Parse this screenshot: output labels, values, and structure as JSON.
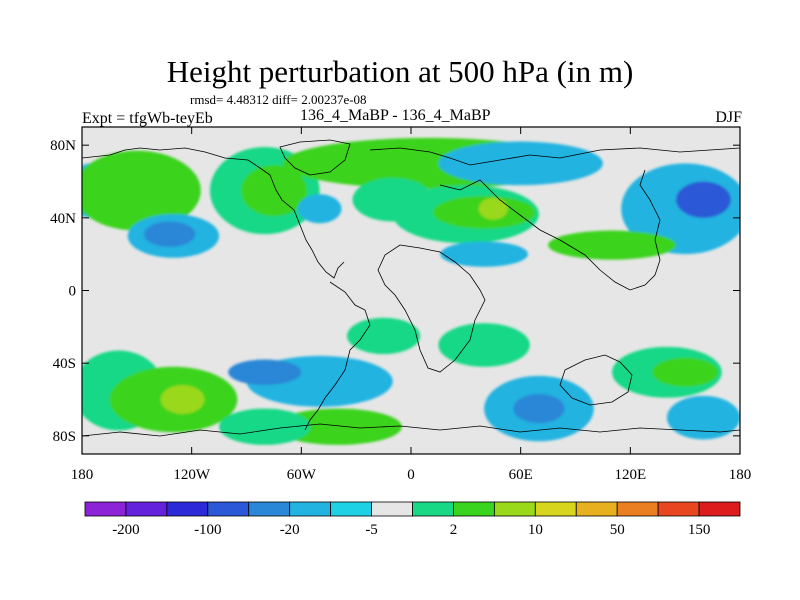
{
  "chart_data": {
    "type": "heatmap",
    "title": "Height perturbation at 500 hPa (in m)",
    "stats": "rmsd= 4.48312 diff= 2.00237e-08",
    "left_label": "Expt = tfgWb-teyEb",
    "center_label": "136_4_MaBP - 136_4_MaBP",
    "right_label": "DJF",
    "x_ticks": [
      {
        "value": -180,
        "label": "180"
      },
      {
        "value": -120,
        "label": "120W"
      },
      {
        "value": -60,
        "label": "60W"
      },
      {
        "value": 0,
        "label": "0"
      },
      {
        "value": 60,
        "label": "60E"
      },
      {
        "value": 120,
        "label": "120E"
      },
      {
        "value": 180,
        "label": "180"
      }
    ],
    "y_ticks": [
      {
        "value": 80,
        "label": "80N"
      },
      {
        "value": 40,
        "label": "40N"
      },
      {
        "value": 0,
        "label": "0"
      },
      {
        "value": -40,
        "label": "40S"
      },
      {
        "value": -80,
        "label": "80S"
      }
    ],
    "xlim": [
      -180,
      180
    ],
    "ylim": [
      -90,
      90
    ],
    "colorbar": {
      "colors": [
        "#8c23d6",
        "#6522dd",
        "#2c2ad8",
        "#2a58d6",
        "#2a86d6",
        "#22b3e0",
        "#1ed1e5",
        "#e6e6e6",
        "#18d886",
        "#3ad31e",
        "#9ad81a",
        "#d7d51d",
        "#e7b01e",
        "#e97f20",
        "#e84620",
        "#dd1d1d"
      ],
      "labels": [
        "-200",
        "-100",
        "-20",
        "-5",
        "2",
        "10",
        "50",
        "150"
      ]
    },
    "level_colors": {
      "-5": "#22b3e0",
      "-10": "#2a86d6",
      "-20": "#2a58d6",
      "5": "#18d886",
      "10": "#3ad31e",
      "20": "#9ad81a"
    },
    "regions": [
      {
        "level": -5,
        "center": [
          -175,
          55
        ],
        "radius": [
          12,
          15
        ]
      },
      {
        "level": -20,
        "center": [
          -177,
          52
        ],
        "radius": [
          6,
          9
        ]
      },
      {
        "level": 10,
        "center": [
          -150,
          55
        ],
        "radius": [
          35,
          22
        ]
      },
      {
        "level": -5,
        "center": [
          -130,
          30
        ],
        "radius": [
          25,
          12
        ]
      },
      {
        "level": -10,
        "center": [
          -132,
          31
        ],
        "radius": [
          14,
          7
        ]
      },
      {
        "level": 5,
        "center": [
          -80,
          55
        ],
        "radius": [
          30,
          24
        ]
      },
      {
        "level": 10,
        "center": [
          -75,
          55
        ],
        "radius": [
          18,
          14
        ]
      },
      {
        "level": -5,
        "center": [
          -50,
          45
        ],
        "radius": [
          12,
          8
        ]
      },
      {
        "level": 10,
        "center": [
          10,
          70
        ],
        "radius": [
          80,
          14
        ]
      },
      {
        "level": 5,
        "center": [
          -10,
          50
        ],
        "radius": [
          22,
          12
        ]
      },
      {
        "level": 5,
        "center": [
          30,
          42
        ],
        "radius": [
          40,
          16
        ]
      },
      {
        "level": 10,
        "center": [
          40,
          43
        ],
        "radius": [
          28,
          9
        ]
      },
      {
        "level": 20,
        "center": [
          45,
          45
        ],
        "radius": [
          8,
          6
        ]
      },
      {
        "level": -5,
        "center": [
          60,
          70
        ],
        "radius": [
          45,
          12
        ]
      },
      {
        "level": -5,
        "center": [
          40,
          20
        ],
        "radius": [
          24,
          7
        ]
      },
      {
        "level": -5,
        "center": [
          150,
          45
        ],
        "radius": [
          35,
          25
        ]
      },
      {
        "level": -20,
        "center": [
          160,
          50
        ],
        "radius": [
          15,
          10
        ]
      },
      {
        "level": 10,
        "center": [
          110,
          25
        ],
        "radius": [
          35,
          8
        ]
      },
      {
        "level": 5,
        "center": [
          -15,
          -25
        ],
        "radius": [
          20,
          10
        ]
      },
      {
        "level": 5,
        "center": [
          40,
          -30
        ],
        "radius": [
          25,
          12
        ]
      },
      {
        "level": 5,
        "center": [
          -160,
          -55
        ],
        "radius": [
          25,
          22
        ]
      },
      {
        "level": 10,
        "center": [
          -130,
          -60
        ],
        "radius": [
          35,
          18
        ]
      },
      {
        "level": 20,
        "center": [
          -125,
          -60
        ],
        "radius": [
          12,
          8
        ]
      },
      {
        "level": -5,
        "center": [
          -50,
          -50
        ],
        "radius": [
          40,
          14
        ]
      },
      {
        "level": -10,
        "center": [
          -80,
          -45
        ],
        "radius": [
          20,
          7
        ]
      },
      {
        "level": 10,
        "center": [
          -40,
          -75
        ],
        "radius": [
          35,
          10
        ]
      },
      {
        "level": 5,
        "center": [
          -80,
          -75
        ],
        "radius": [
          25,
          10
        ]
      },
      {
        "level": -5,
        "center": [
          70,
          -65
        ],
        "radius": [
          30,
          18
        ]
      },
      {
        "level": -10,
        "center": [
          70,
          -65
        ],
        "radius": [
          14,
          8
        ]
      },
      {
        "level": 5,
        "center": [
          140,
          -45
        ],
        "radius": [
          30,
          14
        ]
      },
      {
        "level": 10,
        "center": [
          150,
          -45
        ],
        "radius": [
          18,
          8
        ]
      },
      {
        "level": -5,
        "center": [
          160,
          -70
        ],
        "radius": [
          20,
          12
        ]
      }
    ]
  }
}
